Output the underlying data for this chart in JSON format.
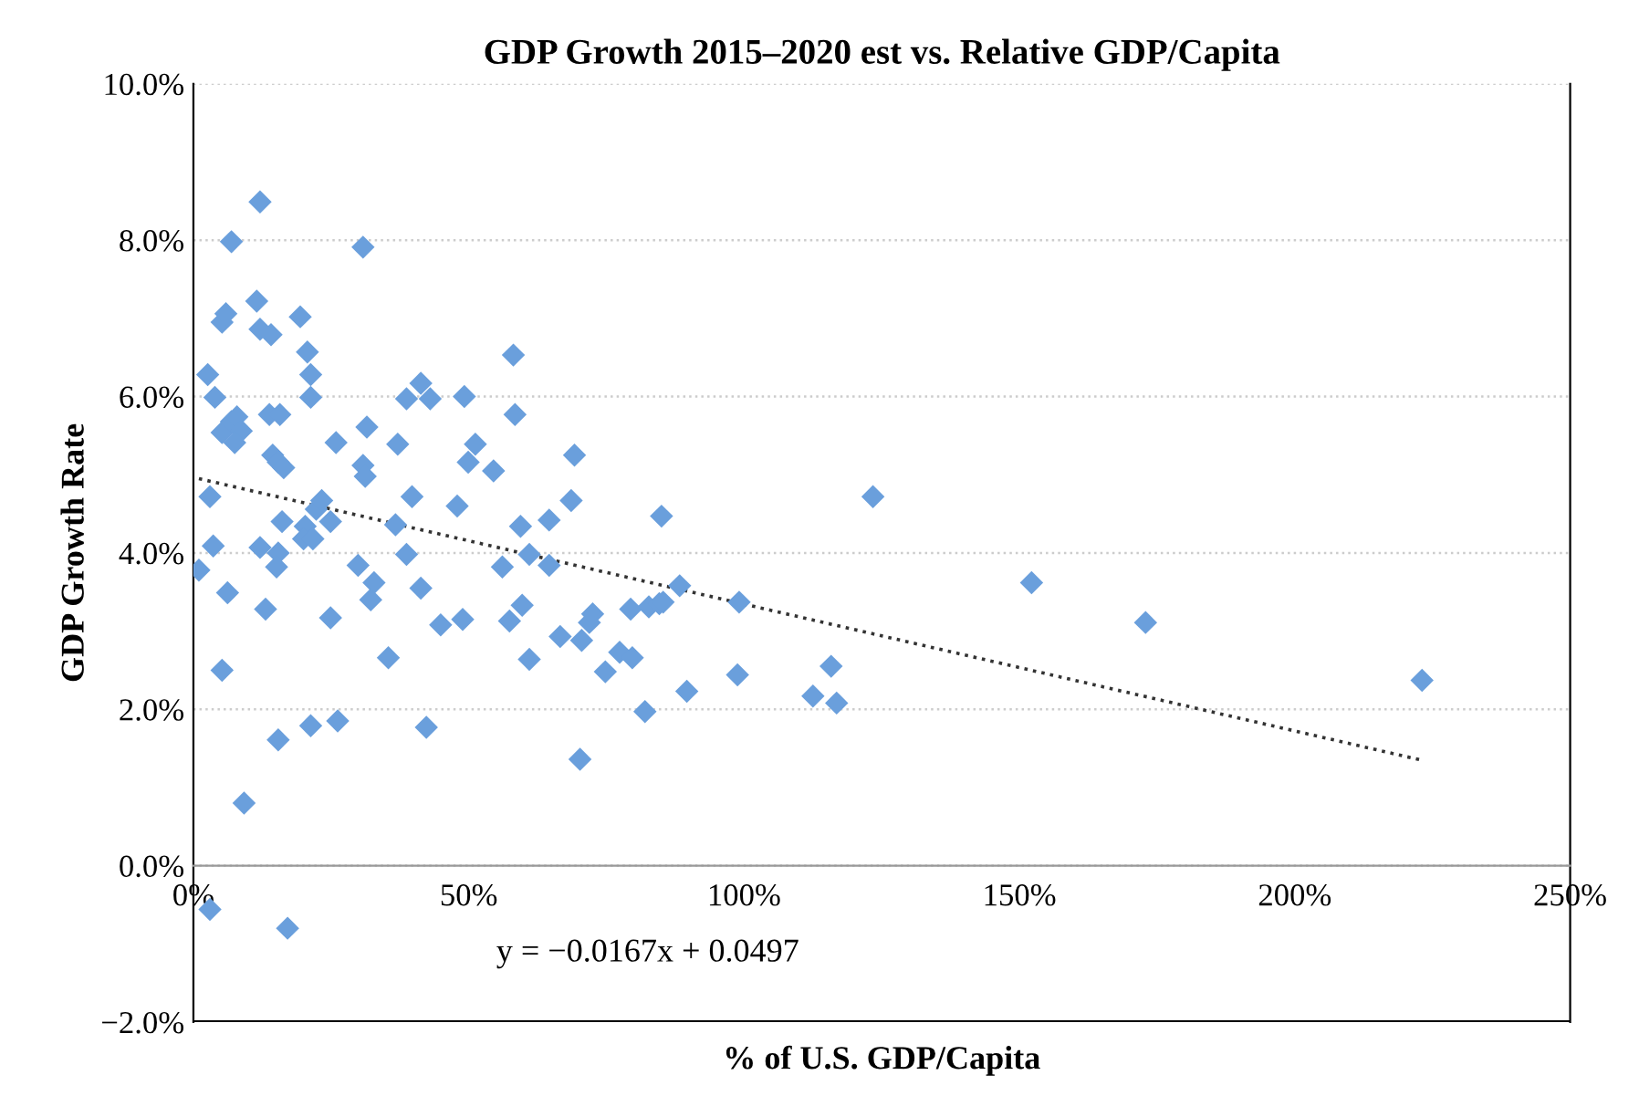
{
  "chart_data": {
    "type": "scatter",
    "title": "GDP Growth 2015–2020 est vs. Relative GDP/Capita",
    "xlabel": "% of U.S. GDP/Capita",
    "ylabel": "GDP Growth Rate",
    "xlim": [
      0,
      250
    ],
    "xticks": [
      {
        "value": 0,
        "label": "0%"
      },
      {
        "value": 50,
        "label": "50%"
      },
      {
        "value": 100,
        "label": "100%"
      },
      {
        "value": 150,
        "label": "150%"
      },
      {
        "value": 200,
        "label": "200%"
      },
      {
        "value": 250,
        "label": "250%"
      }
    ],
    "ylim": [
      -2,
      10
    ],
    "yticks": [
      {
        "value": -2,
        "label": "−2.0%"
      },
      {
        "value": 0,
        "label": "0.0%"
      },
      {
        "value": 2,
        "label": "2.0%"
      },
      {
        "value": 4,
        "label": "4.0%"
      },
      {
        "value": 6,
        "label": "6.0%"
      },
      {
        "value": 8,
        "label": "8.0%"
      },
      {
        "value": 10,
        "label": "10.0%"
      }
    ],
    "grid": "y",
    "legend": false,
    "annotations": [
      "y = −0.0167x + 0.0497"
    ],
    "series": [
      {
        "marker": "diamond",
        "color": "#6a9fdc",
        "x": [
          1,
          2.6,
          3,
          3.6,
          3.9,
          3,
          5.2,
          5.9,
          5.2,
          5.2,
          6.2,
          6.9,
          6.9,
          7.9,
          8.7,
          7.5,
          9.2,
          12.1,
          11.5,
          12.1,
          14.1,
          12.1,
          13.1,
          13.8,
          15.7,
          14.4,
          15.4,
          16.4,
          15.4,
          15.1,
          16.1,
          15.4,
          17.1,
          19.4,
          20.7,
          21.3,
          21.3,
          20.3,
          20,
          21.7,
          22.3,
          23.3,
          21.3,
          24.9,
          24.9,
          25.9,
          26.2,
          29.9,
          30.8,
          31.2,
          30.8,
          31.5,
          32.8,
          32.2,
          35.4,
          37.1,
          36.7,
          38.7,
          38.7,
          39.7,
          41.3,
          43,
          41.3,
          42.3,
          44.9,
          49.2,
          47.9,
          48.9,
          49.9,
          51.2,
          54.5,
          56.1,
          57.4,
          58.1,
          58.4,
          59.4,
          59.7,
          61,
          61,
          64.6,
          64.6,
          66.6,
          68.6,
          69.2,
          70.2,
          70.5,
          71.9,
          72.5,
          74.8,
          77.4,
          79.7,
          79.4,
          82,
          82.7,
          84.6,
          85.3,
          85,
          88.3,
          89.6,
          99.1,
          98.8,
          112.5,
          115.8,
          116.8,
          123.4,
          152.2,
          172.9,
          223.1
        ],
        "values": [
          3.78,
          6.28,
          4.72,
          4.09,
          5.99,
          -0.56,
          6.95,
          7.06,
          5.54,
          2.5,
          3.49,
          7.98,
          5.68,
          5.74,
          5.56,
          5.41,
          0.8,
          8.49,
          7.22,
          6.86,
          6.79,
          4.07,
          3.28,
          5.77,
          5.77,
          5.25,
          5.16,
          5.09,
          4.0,
          3.82,
          4.4,
          1.61,
          -0.8,
          7.02,
          6.57,
          6.28,
          5.99,
          4.34,
          4.18,
          4.18,
          4.56,
          4.67,
          1.79,
          4.4,
          3.17,
          5.41,
          1.85,
          3.84,
          5.12,
          4.98,
          7.91,
          5.61,
          3.62,
          3.4,
          2.66,
          5.39,
          4.36,
          5.97,
          3.98,
          4.72,
          6.17,
          5.97,
          3.55,
          1.77,
          3.08,
          6.0,
          4.6,
          3.15,
          5.16,
          5.39,
          5.05,
          3.82,
          3.13,
          6.53,
          5.77,
          4.34,
          3.33,
          3.98,
          2.64,
          3.84,
          4.42,
          2.93,
          4.67,
          5.25,
          1.36,
          2.88,
          3.11,
          3.22,
          2.48,
          2.73,
          2.66,
          3.28,
          1.97,
          3.31,
          3.35,
          3.37,
          4.47,
          3.58,
          2.23,
          3.37,
          2.44,
          2.17,
          2.55,
          2.08,
          4.72,
          3.62,
          3.11,
          2.37
        ]
      },
      {
        "type": "line",
        "marker": "none",
        "color": "#333333",
        "line_style": "dotted",
        "x": [
          1,
          223
        ],
        "values": [
          4.95,
          1.35
        ]
      }
    ]
  }
}
